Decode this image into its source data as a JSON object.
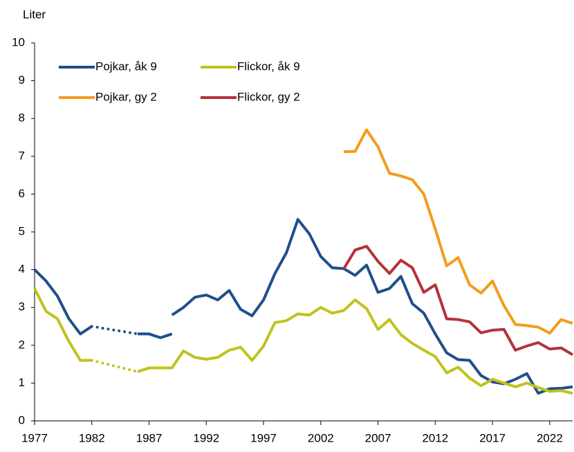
{
  "chart_data": {
    "type": "line",
    "ylabel": "Liter",
    "xlim": [
      1977,
      2024
    ],
    "xticks": [
      1977,
      1982,
      1987,
      1992,
      1997,
      2002,
      2007,
      2012,
      2017,
      2022
    ],
    "ylim": [
      0,
      10
    ],
    "yticks": [
      0,
      1,
      2,
      3,
      4,
      5,
      6,
      7,
      8,
      9,
      10
    ],
    "legend": "upper left",
    "gap_style": "dotted",
    "series": [
      {
        "name": "Pojkar, åk 9",
        "color": "#1f4e8c",
        "x": [
          1977,
          1978,
          1979,
          1980,
          1981,
          1982,
          1983,
          1984,
          1985,
          1986,
          1987,
          1988,
          1989,
          null,
          1989,
          1990,
          1991,
          1992,
          1993,
          1994,
          1995,
          1996,
          1997,
          1998,
          1999,
          2000,
          2001,
          2002,
          2003,
          2004,
          2005,
          2006,
          2007,
          2008,
          2009,
          2010,
          2011,
          2012,
          2013,
          2014,
          2015,
          2016,
          2017,
          2018,
          2019,
          2020,
          2021,
          2022,
          2023,
          2024
        ],
        "values": [
          4.0,
          3.7,
          3.3,
          2.7,
          2.3,
          2.5,
          null,
          null,
          null,
          2.3,
          2.3,
          2.2,
          2.3,
          null,
          2.8,
          3.0,
          3.27,
          3.33,
          3.2,
          3.45,
          2.95,
          2.78,
          3.2,
          3.9,
          4.45,
          5.33,
          4.95,
          4.35,
          4.05,
          4.03,
          3.85,
          4.12,
          3.4,
          3.5,
          3.82,
          3.1,
          2.85,
          2.3,
          1.8,
          1.62,
          1.6,
          1.2,
          1.03,
          0.98,
          1.1,
          1.25,
          0.73,
          0.85,
          0.86,
          0.9
        ]
      },
      {
        "name": "Flickor, åk 9",
        "color": "#c0c21b",
        "x": [
          1977,
          1978,
          1979,
          1980,
          1981,
          1982,
          1983,
          1984,
          1985,
          1986,
          1987,
          1988,
          1989,
          1990,
          1991,
          1992,
          1993,
          1994,
          1995,
          1996,
          1997,
          1998,
          1999,
          2000,
          2001,
          2002,
          2003,
          2004,
          2005,
          2006,
          2007,
          2008,
          2009,
          2010,
          2011,
          2012,
          2013,
          2014,
          2015,
          2016,
          2017,
          2018,
          2019,
          2020,
          2021,
          2022,
          2023,
          2024
        ],
        "values": [
          3.5,
          2.9,
          2.7,
          2.1,
          1.6,
          1.6,
          null,
          null,
          null,
          1.3,
          1.4,
          1.4,
          1.4,
          1.85,
          1.68,
          1.63,
          1.68,
          1.87,
          1.95,
          1.6,
          1.98,
          2.6,
          2.65,
          2.83,
          2.8,
          3.0,
          2.85,
          2.92,
          3.2,
          2.97,
          2.42,
          2.68,
          2.28,
          2.05,
          1.87,
          1.7,
          1.27,
          1.42,
          1.13,
          0.93,
          1.1,
          1.0,
          0.9,
          1.0,
          0.88,
          0.78,
          0.8,
          0.73
        ]
      },
      {
        "name": "Pojkar, gy 2",
        "color": "#f39c1a",
        "x": [
          2004,
          2005,
          2006,
          2007,
          2008,
          2009,
          2010,
          2011,
          2012,
          2013,
          2014,
          2015,
          2016,
          2017,
          2018,
          2019,
          2020,
          2021,
          2022,
          2023,
          2024
        ],
        "values": [
          7.12,
          7.13,
          7.7,
          7.25,
          6.55,
          6.48,
          6.38,
          6.0,
          5.08,
          4.1,
          4.32,
          3.6,
          3.38,
          3.7,
          3.05,
          2.55,
          2.52,
          2.48,
          2.32,
          2.68,
          2.58
        ]
      },
      {
        "name": "Flickor, gy 2",
        "color": "#b5313a",
        "x": [
          2004,
          2005,
          2006,
          2007,
          2008,
          2009,
          2010,
          2011,
          2012,
          2013,
          2014,
          2015,
          2016,
          2017,
          2018,
          2019,
          2020,
          2021,
          2022,
          2023,
          2024
        ],
        "values": [
          4.02,
          4.52,
          4.62,
          4.22,
          3.9,
          4.25,
          4.05,
          3.4,
          3.6,
          2.7,
          2.68,
          2.62,
          2.33,
          2.4,
          2.42,
          1.87,
          1.98,
          2.07,
          1.9,
          1.93,
          1.75
        ]
      }
    ]
  }
}
